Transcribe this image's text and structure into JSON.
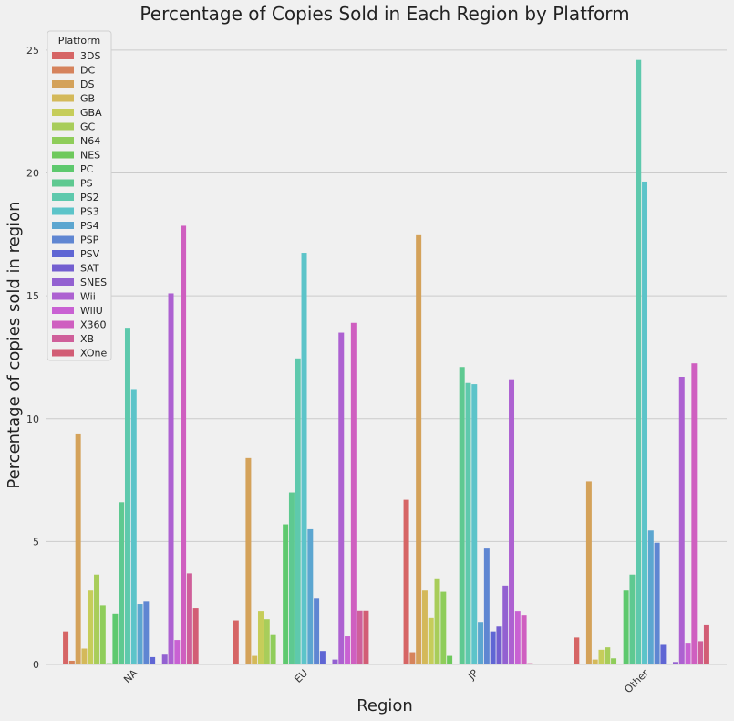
{
  "chart_data": {
    "type": "bar",
    "title": "Percentage of Copies Sold in Each Region by Platform",
    "xlabel": "Region",
    "ylabel": "Percentage of copies sold in region",
    "categories": [
      "NA",
      "EU",
      "JP",
      "Other"
    ],
    "ylim": [
      0,
      26
    ],
    "yticks": [
      0,
      5,
      10,
      15,
      20,
      25
    ],
    "grid": "horizontal",
    "legend_title": "Platform",
    "legend_position": "top-left",
    "series": [
      {
        "name": "3DS",
        "color": "#d66565",
        "values": [
          1.35,
          1.8,
          6.7,
          1.1
        ]
      },
      {
        "name": "DC",
        "color": "#d6835c",
        "values": [
          0.15,
          0.0,
          0.5,
          0.0
        ]
      },
      {
        "name": "DS",
        "color": "#d4a25a",
        "values": [
          9.4,
          8.4,
          17.5,
          7.45
        ]
      },
      {
        "name": "GB",
        "color": "#d4b95a",
        "values": [
          0.65,
          0.35,
          3.0,
          0.2
        ]
      },
      {
        "name": "GBA",
        "color": "#c6cd5a",
        "values": [
          3.0,
          2.15,
          1.9,
          0.6
        ]
      },
      {
        "name": "GC",
        "color": "#a8cd5a",
        "values": [
          3.65,
          1.85,
          3.5,
          0.7
        ]
      },
      {
        "name": "N64",
        "color": "#8fcd5a",
        "values": [
          2.4,
          1.2,
          2.95,
          0.25
        ]
      },
      {
        "name": "NES",
        "color": "#6ec95c",
        "values": [
          0.05,
          0.0,
          0.35,
          0.0
        ]
      },
      {
        "name": "PC",
        "color": "#5ec96e",
        "values": [
          2.05,
          5.7,
          0.0,
          3.0
        ]
      },
      {
        "name": "PS",
        "color": "#5ec991",
        "values": [
          6.6,
          7.0,
          12.1,
          3.65
        ]
      },
      {
        "name": "PS2",
        "color": "#5ec9ad",
        "values": [
          13.7,
          12.45,
          11.45,
          24.6
        ]
      },
      {
        "name": "PS3",
        "color": "#5cc4c9",
        "values": [
          11.2,
          16.75,
          11.4,
          19.65
        ]
      },
      {
        "name": "PS4",
        "color": "#5ca6d0",
        "values": [
          2.45,
          5.5,
          1.7,
          5.45
        ]
      },
      {
        "name": "PSP",
        "color": "#5f86d2",
        "values": [
          2.55,
          2.7,
          4.75,
          4.95
        ]
      },
      {
        "name": "PSV",
        "color": "#5f66d4",
        "values": [
          0.3,
          0.55,
          1.35,
          0.8
        ]
      },
      {
        "name": "SAT",
        "color": "#735fd0",
        "values": [
          0.0,
          0.0,
          1.55,
          0.0
        ]
      },
      {
        "name": "SNES",
        "color": "#9361d1",
        "values": [
          0.4,
          0.2,
          3.2,
          0.1
        ]
      },
      {
        "name": "Wii",
        "color": "#ad61d1",
        "values": [
          15.1,
          13.5,
          11.6,
          11.7
        ]
      },
      {
        "name": "WiiU",
        "color": "#c961d3",
        "values": [
          1.0,
          1.15,
          2.15,
          0.85
        ]
      },
      {
        "name": "X360",
        "color": "#cf5fc0",
        "values": [
          17.85,
          13.9,
          2.0,
          12.25
        ]
      },
      {
        "name": "XB",
        "color": "#cf5f9a",
        "values": [
          3.7,
          2.2,
          0.05,
          0.95
        ]
      },
      {
        "name": "XOne",
        "color": "#d25d75",
        "values": [
          2.3,
          2.2,
          0.0,
          1.6
        ]
      }
    ]
  }
}
